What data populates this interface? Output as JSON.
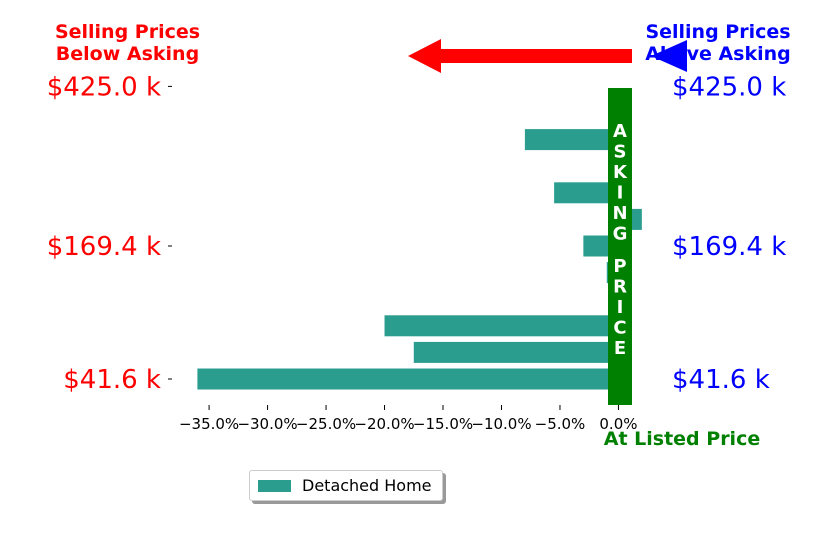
{
  "header": {
    "left_line1": "Selling Prices",
    "left_line2": "Below Asking",
    "right_line1": "Selling Prices",
    "right_line2": "Above Asking",
    "left_color": "#ff0000",
    "right_color": "#0000ff"
  },
  "asking_band_label": "ASKING PRICE",
  "at_listed_label": "At Listed Price",
  "legend": {
    "label": "Detached Home"
  },
  "colors": {
    "bar": "#2a9d8f",
    "asking_band": "#008000",
    "arrow_left": "#ff0000",
    "arrow_right": "#0000ff",
    "at_listed": "#008000"
  },
  "chart_data": {
    "type": "bar",
    "orientation": "horizontal",
    "series": [
      {
        "name": "Detached Home",
        "values": [
          -36.0,
          -17.5,
          -20.0,
          1.0,
          -1.0,
          -3.0,
          2.0,
          -5.5,
          1.0,
          -8.0,
          1.0
        ]
      }
    ],
    "xlim": [
      -38,
      1.5
    ],
    "xticks": [
      -35,
      -30,
      -25,
      -20,
      -15,
      -10,
      -5,
      0
    ],
    "xtick_labels": [
      "−35.0%",
      "−30.0%",
      "−25.0%",
      "−20.0%",
      "−15.0%",
      "−10.0%",
      "−5.0%",
      "0.0%"
    ],
    "y_tick_rows": [
      0,
      5,
      11
    ],
    "y_left_labels": [
      "$41.6 k",
      "$169.4 k",
      "$425.0 k"
    ],
    "y_right_labels": [
      "$41.6 k",
      "$169.4 k",
      "$425.0 k"
    ],
    "legend_position": "lower-center"
  }
}
